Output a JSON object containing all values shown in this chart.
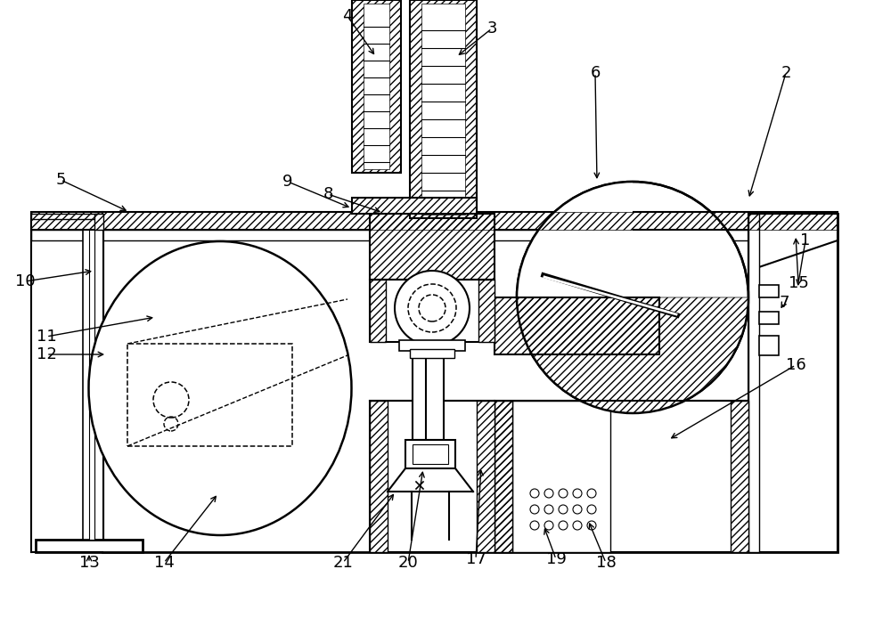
{
  "bg_color": "#ffffff",
  "lc": "#000000",
  "figsize": [
    10.0,
    6.94
  ],
  "dpi": 100
}
